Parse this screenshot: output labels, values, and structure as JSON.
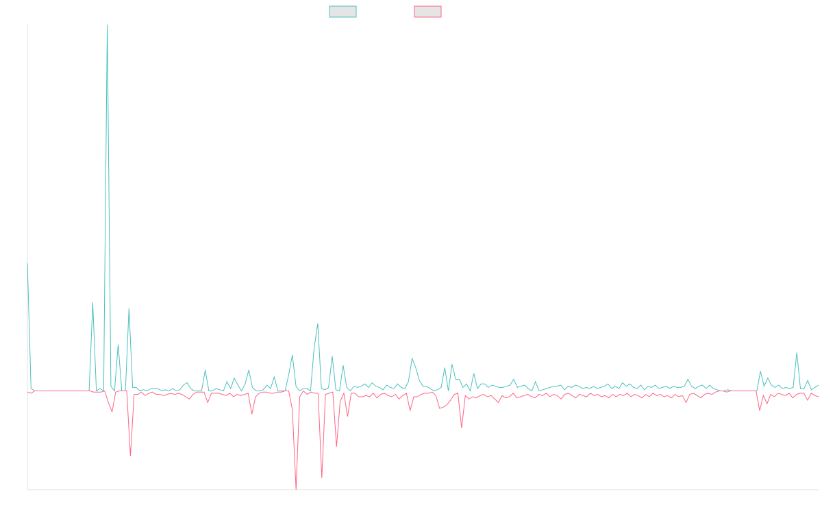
{
  "chart_data": {
    "type": "line",
    "title": "",
    "xlabel": "",
    "ylabel": "",
    "grid": false,
    "legend": "top-center",
    "ylim": [
      -0.85,
      3.15
    ],
    "series": [
      {
        "color": "#4bc0c0",
        "fill": "#e5e5e5",
        "values": [
          1.1,
          0.02,
          0,
          0,
          0,
          0,
          0,
          0,
          0,
          0,
          0,
          0,
          0,
          0,
          0,
          0,
          0,
          0,
          0.76,
          0,
          0.02,
          0,
          3.15,
          0.04,
          0,
          0.4,
          0,
          0,
          0.71,
          0.03,
          0.03,
          0,
          0.01,
          0,
          0.02,
          0.02,
          0.02,
          0,
          0.01,
          0,
          0.02,
          0,
          0.01,
          0.05,
          0.07,
          0.02,
          0,
          0,
          0,
          0.18,
          0,
          0,
          0.02,
          0.01,
          0,
          0.08,
          0.02,
          0.11,
          0.05,
          0,
          0.06,
          0.18,
          0.03,
          0,
          0,
          0.01,
          0.05,
          0.02,
          0.12,
          0,
          0,
          0,
          0.14,
          0.31,
          0.04,
          0,
          0.02,
          0.02,
          0,
          0.37,
          0.58,
          0.02,
          0.01,
          0.03,
          0.3,
          0.01,
          0,
          0.22,
          0.03,
          0,
          0.04,
          0.03,
          0.04,
          0.06,
          0.03,
          0.07,
          0.04,
          0.03,
          0.01,
          0.05,
          0.03,
          0.02,
          0.06,
          0.03,
          0.02,
          0.08,
          0.28,
          0.2,
          0.09,
          0.04,
          0.04,
          0.02,
          0,
          0.01,
          0.03,
          0.2,
          0,
          0.23,
          0.1,
          0.1,
          0.03,
          0.06,
          0,
          0.15,
          0.02,
          0.06,
          0.06,
          0.03,
          0.05,
          0.04,
          0.03,
          0.03,
          0.04,
          0.05,
          0.1,
          0.03,
          0.04,
          0.05,
          0.02,
          0,
          0.08,
          0,
          0.01,
          0.02,
          0.03,
          0.04,
          0.04,
          0.05,
          0.01,
          0.04,
          0.03,
          0.05,
          0.04,
          0.02,
          0.03,
          0.02,
          0.04,
          0.02,
          0.03,
          0.04,
          0.06,
          0.02,
          0.04,
          0.02,
          0.07,
          0.04,
          0.06,
          0.03,
          0.02,
          0.05,
          0.01,
          0.04,
          0.03,
          0.05,
          0.02,
          0.03,
          0.04,
          0.02,
          0.04,
          0.03,
          0.03,
          0.04,
          0.1,
          0.04,
          0.02,
          0.04,
          0.05,
          0.02,
          0.05,
          0.02,
          0.01,
          0,
          0,
          0.01,
          0,
          0,
          0,
          0,
          0,
          0,
          0,
          0,
          0.17,
          0.04,
          0.11,
          0.05,
          0.03,
          0.05,
          0.02,
          0.03,
          0.02,
          0.03,
          0.33,
          0.02,
          0.02,
          0.09,
          0.01,
          0.03,
          0.05
        ]
      },
      {
        "color": "#ff6384",
        "fill": "#e5e5e5",
        "values": [
          -0.01,
          -0.02,
          0,
          0,
          0,
          0,
          0,
          0,
          0,
          0,
          0,
          0,
          0,
          0,
          0,
          0,
          0,
          0,
          -0.01,
          -0.01,
          -0.01,
          0,
          -0.1,
          -0.18,
          -0.01,
          0,
          0,
          0,
          -0.56,
          -0.03,
          -0.03,
          -0.01,
          -0.04,
          -0.02,
          -0.01,
          -0.03,
          -0.03,
          -0.04,
          -0.03,
          -0.02,
          -0.03,
          -0.02,
          -0.03,
          -0.05,
          -0.07,
          -0.03,
          -0.01,
          -0.01,
          -0.01,
          -0.1,
          -0.02,
          -0.02,
          -0.02,
          -0.03,
          -0.04,
          -0.02,
          -0.05,
          -0.03,
          -0.04,
          -0.03,
          -0.02,
          -0.2,
          -0.05,
          -0.02,
          -0.01,
          -0.01,
          -0.02,
          -0.02,
          -0.01,
          -0.01,
          0,
          0,
          -0.16,
          -0.85,
          -0.05,
          0,
          -0.03,
          -0.01,
          -0.02,
          -0.02,
          -0.75,
          -0.03,
          -0.02,
          -0.01,
          -0.48,
          -0.09,
          -0.02,
          -0.22,
          -0.02,
          -0.02,
          -0.05,
          -0.05,
          -0.04,
          -0.05,
          -0.02,
          -0.06,
          -0.03,
          -0.02,
          -0.04,
          -0.05,
          -0.03,
          -0.07,
          -0.04,
          -0.02,
          -0.17,
          -0.05,
          -0.05,
          -0.03,
          -0.02,
          -0.02,
          -0.01,
          -0.04,
          -0.15,
          -0.14,
          -0.12,
          -0.08,
          -0.03,
          -0.02,
          -0.32,
          -0.04,
          -0.07,
          -0.05,
          -0.06,
          -0.04,
          -0.03,
          -0.05,
          -0.04,
          -0.07,
          -0.1,
          -0.04,
          -0.06,
          -0.05,
          -0.02,
          -0.06,
          -0.05,
          -0.04,
          -0.03,
          -0.05,
          -0.06,
          -0.03,
          -0.04,
          -0.02,
          -0.05,
          -0.03,
          -0.04,
          -0.07,
          -0.03,
          -0.02,
          -0.04,
          -0.06,
          -0.03,
          -0.04,
          -0.05,
          -0.02,
          -0.04,
          -0.03,
          -0.05,
          -0.04,
          -0.06,
          -0.03,
          -0.05,
          -0.03,
          -0.04,
          -0.02,
          -0.05,
          -0.03,
          -0.04,
          -0.06,
          -0.03,
          -0.05,
          -0.02,
          -0.04,
          -0.03,
          -0.05,
          -0.04,
          -0.06,
          -0.03,
          -0.05,
          -0.04,
          -0.1,
          -0.03,
          -0.02,
          -0.04,
          -0.06,
          -0.03,
          -0.02,
          -0.03,
          -0.01,
          0,
          0,
          -0.01,
          0,
          0,
          0,
          0,
          0,
          0,
          0,
          0,
          -0.17,
          -0.04,
          -0.11,
          -0.03,
          -0.05,
          -0.02,
          -0.03,
          -0.04,
          -0.02,
          -0.06,
          -0.03,
          -0.02,
          -0.02,
          -0.08,
          -0.02,
          -0.04,
          -0.05
        ]
      }
    ]
  }
}
